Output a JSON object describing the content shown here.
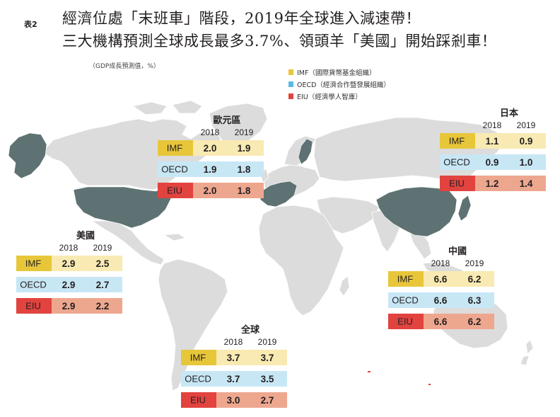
{
  "title": {
    "fig_no": "表2",
    "line1": "經濟位處「末班車」階段，2019年全球進入減速帶！",
    "line2": "三大機構預測全球成長最多3.7%、領頭羊「美國」開始踩剎車！",
    "unit": "（GDP成長預測值，%）"
  },
  "legend": [
    {
      "key": "IMF",
      "label": "IMF（國際貨幣基金組織）",
      "color": "#e8c63a"
    },
    {
      "key": "OECD",
      "label": "OECD（經濟合作暨發展組織）",
      "color": "#5db8e6"
    },
    {
      "key": "EIU",
      "label": "EIU（經濟學人智庫）",
      "color": "#e2433f"
    }
  ],
  "colors": {
    "map_land": "#dcdcdc",
    "map_highlight": "#5e7273",
    "imf_row": "#f8eab2",
    "oecd_row": "#c8e7f5",
    "eiu_row": "#eea78f"
  },
  "chart_data": [
    {
      "type": "table",
      "region_id": "eurozone",
      "title": "歐元區",
      "columns": [
        "2018",
        "2019"
      ],
      "series": [
        {
          "name": "IMF",
          "values": [
            2.0,
            1.9
          ]
        },
        {
          "name": "OECD",
          "values": [
            1.9,
            1.8
          ]
        },
        {
          "name": "EIU",
          "values": [
            2.0,
            1.8
          ]
        }
      ]
    },
    {
      "type": "table",
      "region_id": "japan",
      "title": "日本",
      "columns": [
        "2018",
        "2019"
      ],
      "series": [
        {
          "name": "IMF",
          "values": [
            1.1,
            0.9
          ]
        },
        {
          "name": "OECD",
          "values": [
            0.9,
            1.0
          ]
        },
        {
          "name": "EIU",
          "values": [
            1.2,
            1.4
          ]
        }
      ]
    },
    {
      "type": "table",
      "region_id": "usa",
      "title": "美國",
      "columns": [
        "2018",
        "2019"
      ],
      "series": [
        {
          "name": "IMF",
          "values": [
            2.9,
            2.5
          ]
        },
        {
          "name": "OECD",
          "values": [
            2.9,
            2.7
          ]
        },
        {
          "name": "EIU",
          "values": [
            2.9,
            2.2
          ]
        }
      ]
    },
    {
      "type": "table",
      "region_id": "china",
      "title": "中國",
      "columns": [
        "2018",
        "2019"
      ],
      "series": [
        {
          "name": "IMF",
          "values": [
            6.6,
            6.2
          ]
        },
        {
          "name": "OECD",
          "values": [
            6.6,
            6.3
          ]
        },
        {
          "name": "EIU",
          "values": [
            6.6,
            6.2
          ]
        }
      ]
    },
    {
      "type": "table",
      "region_id": "world",
      "title": "全球",
      "columns": [
        "2018",
        "2019"
      ],
      "series": [
        {
          "name": "IMF",
          "values": [
            3.7,
            3.7
          ]
        },
        {
          "name": "OECD",
          "values": [
            3.7,
            3.5
          ]
        },
        {
          "name": "EIU",
          "values": [
            3.0,
            2.7
          ]
        }
      ]
    }
  ]
}
